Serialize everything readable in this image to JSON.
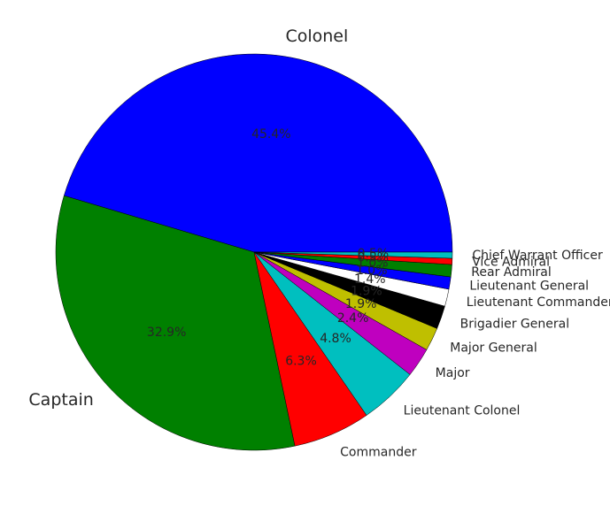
{
  "chart_data": {
    "type": "pie",
    "start_angle_deg": 0,
    "direction": "counterclockwise",
    "label_format": "percent_one_decimal",
    "categories": [
      "Colonel",
      "Captain",
      "Commander",
      "Lieutenant Colonel",
      "Major",
      "Major General",
      "Brigadier General",
      "Lieutenant Commander",
      "Lieutenant General",
      "Rear Admiral",
      "Vice Admiral",
      "Chief Warrant Officer"
    ],
    "values": [
      45.4,
      32.9,
      6.3,
      4.8,
      2.4,
      1.9,
      1.9,
      1.4,
      1.0,
      1.0,
      0.5,
      0.5
    ],
    "percent_labels": [
      "45.4%",
      "32.9%",
      "6.3%",
      "4.8%",
      "2.4%",
      "1.9%",
      "1.9%",
      "1.4%",
      "1.0%",
      "1.0%",
      "0.5%",
      "0.5%"
    ],
    "colors": [
      "#0000ff",
      "#008000",
      "#ff0000",
      "#00bfbf",
      "#bf00bf",
      "#bfbf00",
      "#000000",
      "#ffffff",
      "#0000ff",
      "#008000",
      "#ff0000",
      "#00bfbf"
    ],
    "emphasized_labels": [
      "Colonel",
      "Captain"
    ]
  }
}
